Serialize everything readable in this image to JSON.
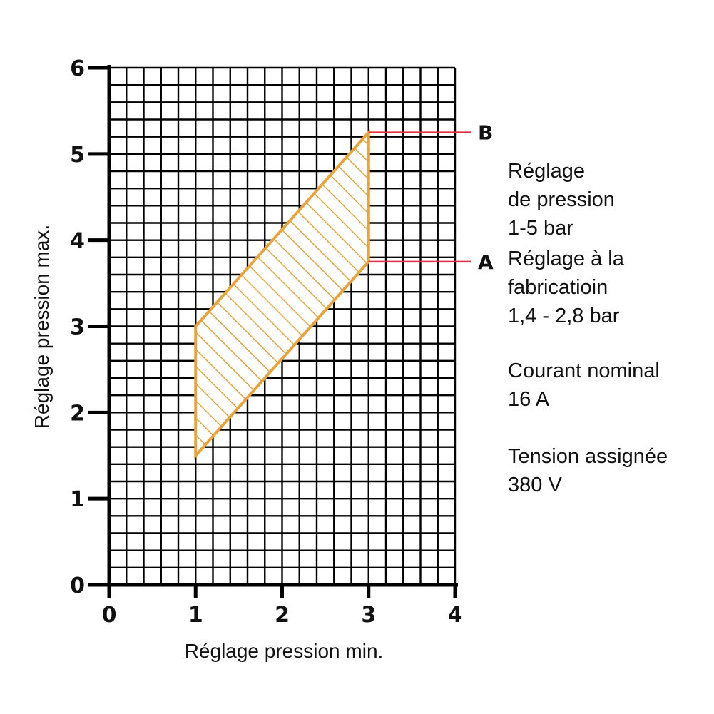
{
  "chart_data": {
    "type": "area",
    "xlabel": "Réglage pression min.",
    "ylabel": "Réglage pression max.",
    "xlim": [
      0,
      4
    ],
    "ylim": [
      0,
      6
    ],
    "x_ticks": [
      "0",
      "1",
      "2",
      "3",
      "4"
    ],
    "y_ticks": [
      "0",
      "1",
      "2",
      "3",
      "4",
      "5",
      "6"
    ],
    "grid": true,
    "region": {
      "fill": "hatched",
      "color": "#e8a33a",
      "points": [
        [
          1,
          1.5
        ],
        [
          3,
          3.75
        ],
        [
          3,
          5.25
        ],
        [
          1,
          3.0
        ]
      ]
    },
    "markers": [
      {
        "label": "B",
        "x": 3,
        "y": 5.25
      },
      {
        "label": "A",
        "x": 3,
        "y": 3.75
      }
    ],
    "marker_line_color": "#e03040"
  },
  "notes": {
    "pressure_setting": [
      "Réglage",
      "de pression",
      "1-5 bar"
    ],
    "factory_setting": [
      "Réglage à la",
      "fabricatioin",
      "1,4 - 2,8 bar"
    ],
    "nominal_current": [
      "Courant nominal",
      "16 A"
    ],
    "rated_voltage": [
      "Tension assignée",
      "380 V"
    ]
  }
}
